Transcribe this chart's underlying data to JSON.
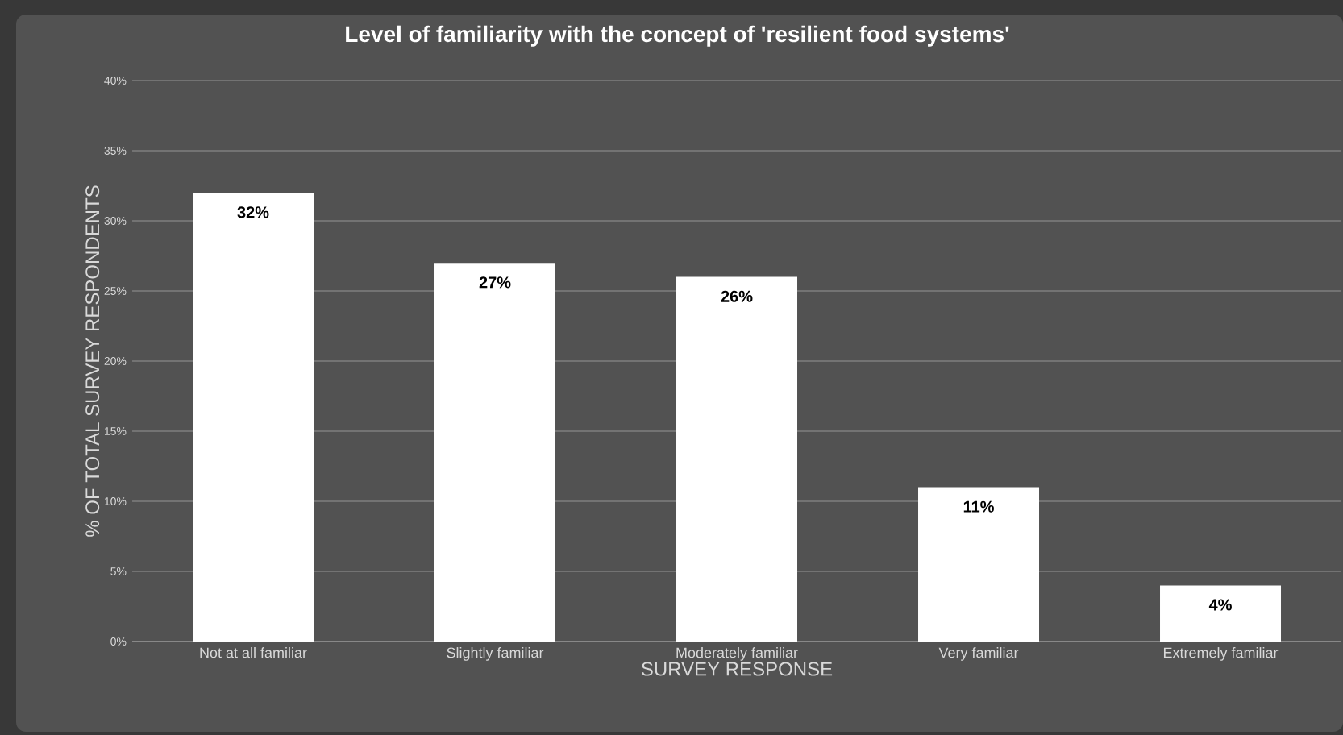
{
  "chart_data": {
    "type": "bar",
    "title": "Level of familiarity with the concept of 'resilient food systems'",
    "xlabel": "SURVEY RESPONSE",
    "ylabel": "% OF TOTAL SURVEY RESPONDENTS",
    "categories": [
      "Not at all familiar",
      "Slightly familiar",
      "Moderately familiar",
      "Very familiar",
      "Extremely familiar"
    ],
    "values": [
      32,
      27,
      26,
      11,
      4
    ],
    "value_labels": [
      "32%",
      "27%",
      "26%",
      "11%",
      "4%"
    ],
    "color": "#ffffff",
    "ylim": [
      0,
      40
    ],
    "yticks": [
      {
        "value": 0,
        "label": "0%"
      },
      {
        "value": 5,
        "label": "5%"
      },
      {
        "value": 10,
        "label": "10%"
      },
      {
        "value": 15,
        "label": "15%"
      },
      {
        "value": 20,
        "label": "20%"
      },
      {
        "value": 25,
        "label": "25%"
      },
      {
        "value": 30,
        "label": "30%"
      },
      {
        "value": 35,
        "label": "35%"
      },
      {
        "value": 40,
        "label": "40%"
      }
    ],
    "grid": "y"
  }
}
